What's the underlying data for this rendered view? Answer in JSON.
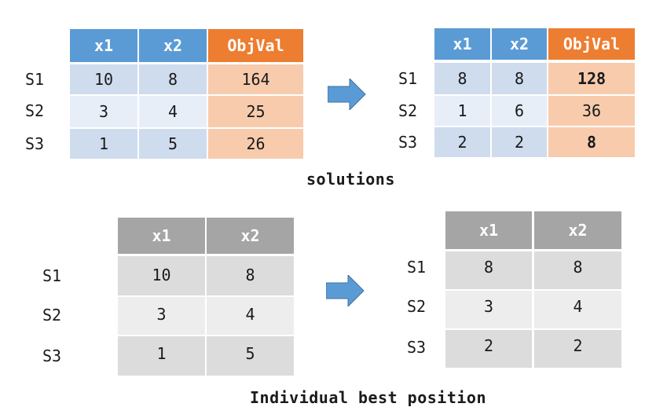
{
  "top_left": {
    "headers": [
      "x1",
      "x2",
      "ObjVal"
    ],
    "rows": [
      {
        "label": "S1",
        "x1": "10",
        "x2": "8",
        "obj": "164"
      },
      {
        "label": "S2",
        "x1": "3",
        "x2": "4",
        "obj": "25"
      },
      {
        "label": "S3",
        "x1": "1",
        "x2": "5",
        "obj": "26"
      }
    ]
  },
  "top_right": {
    "headers": [
      "x1",
      "x2",
      "ObjVal"
    ],
    "rows": [
      {
        "label": "S1",
        "x1": "8",
        "x2": "8",
        "obj": "128"
      },
      {
        "label": "S2",
        "x1": "1",
        "x2": "6",
        "obj": "36"
      },
      {
        "label": "S3",
        "x1": "2",
        "x2": "2",
        "obj": "8"
      }
    ]
  },
  "top_caption": "solutions",
  "bottom_left": {
    "headers": [
      "x1",
      "x2"
    ],
    "rows": [
      {
        "label": "S1",
        "x1": "10",
        "x2": "8"
      },
      {
        "label": "S2",
        "x1": "3",
        "x2": "4"
      },
      {
        "label": "S3",
        "x1": "1",
        "x2": "5"
      }
    ]
  },
  "bottom_right": {
    "headers": [
      "x1",
      "x2"
    ],
    "rows": [
      {
        "label": "S1",
        "x1": "8",
        "x2": "8"
      },
      {
        "label": "S2",
        "x1": "3",
        "x2": "4"
      },
      {
        "label": "S3",
        "x1": "2",
        "x2": "2"
      }
    ]
  },
  "bottom_caption": "Individual best position",
  "colors": {
    "header_blue": "#5b9bd5",
    "header_orange": "#ed7d31",
    "header_gray": "#a5a5a5",
    "arrow": "#5b9bd5"
  }
}
